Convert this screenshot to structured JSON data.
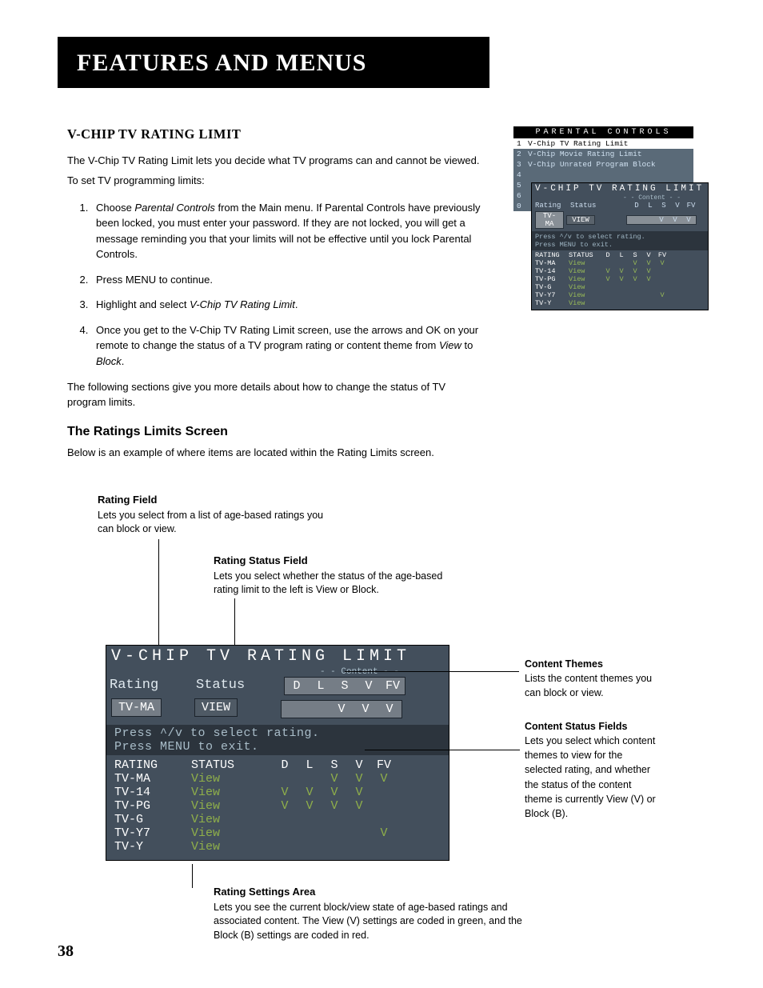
{
  "banner_title": "Features and Menus",
  "subhead": "V-Chip TV Rating Limit",
  "intro_p": "The V-Chip TV Rating Limit lets you decide what TV programs can and cannot be viewed.",
  "intro_p2": "To set TV programming limits:",
  "step1_a": "Choose ",
  "step1_b": "Parental Controls",
  "step1_c": " from the Main menu. If Parental Controls have previously been locked, you must enter your password. If they are not locked, you will get a message reminding you that your limits will not be effective until you lock Parental Controls.",
  "step2": "Press MENU to continue.",
  "step3_a": "Highlight and select ",
  "step3_b": "V-Chip TV Rating Limit",
  "step3_c": ".",
  "step4_a": "Once you get to the V-Chip TV Rating Limit screen, use the arrows and OK on your remote to change the status of a TV program rating or content theme from ",
  "step4_b": "View",
  "step4_c": " to ",
  "step4_d": "Block",
  "step4_e": ".",
  "after_p": "The following sections give you more details about how to change the status of TV program limits.",
  "h3": "The Ratings Limits Screen",
  "h3_sub": "Below is an example of where items are located within the Rating Limits screen.",
  "mini": {
    "header": "PARENTAL CONTROLS",
    "items": [
      {
        "n": "1",
        "t": "V-Chip TV Rating Limit",
        "sel": true
      },
      {
        "n": "2",
        "t": "V-Chip Movie Rating Limit"
      },
      {
        "n": "3",
        "t": "V-Chip Unrated Program Block"
      },
      {
        "n": "4",
        "t": ""
      },
      {
        "n": "5",
        "t": ""
      },
      {
        "n": "6",
        "t": ""
      },
      {
        "n": "0",
        "t": ""
      }
    ],
    "ov_title": "V-CHIP TV RATING LIMIT",
    "ov_subtitle": "- - Content - -",
    "rating_lbl": "Rating",
    "status_lbl": "Status",
    "content_cols": [
      "D",
      "L",
      "S",
      "V",
      "FV"
    ],
    "sel_rating": "TV-MA",
    "sel_status": "VIEW",
    "sel_content": [
      "",
      "",
      "V",
      "V",
      "V"
    ],
    "press1": "Press ^/v to select rating.",
    "press2": "Press MENU to exit.",
    "table_hdr": {
      "c1": "RATING",
      "c2": "STATUS"
    },
    "rows": [
      {
        "r": "TV-MA",
        "s": "View",
        "c": [
          "",
          "",
          "V",
          "V",
          "V"
        ]
      },
      {
        "r": "TV-14",
        "s": "View",
        "c": [
          "V",
          "V",
          "V",
          "V",
          ""
        ]
      },
      {
        "r": "TV-PG",
        "s": "View",
        "c": [
          "V",
          "V",
          "V",
          "V",
          ""
        ]
      },
      {
        "r": "TV-G",
        "s": "View",
        "c": [
          "",
          "",
          "",
          "",
          ""
        ]
      },
      {
        "r": "TV-Y7",
        "s": "View",
        "c": [
          "",
          "",
          "",
          "",
          "V"
        ]
      },
      {
        "r": "TV-Y",
        "s": "View",
        "c": [
          "",
          "",
          "",
          "",
          ""
        ]
      }
    ]
  },
  "annots": {
    "rating_field_t": "Rating Field",
    "rating_field_b": "Lets you select from a list of age-based ratings you can block or view.",
    "status_field_t": "Rating Status Field",
    "status_field_b": "Lets you select whether the status of the age-based rating limit to the left is View or Block.",
    "content_themes_t": "Content Themes",
    "content_themes_b": "Lists the content themes you can block or view.",
    "content_status_t": "Content Status Fields",
    "content_status_b": "Lets you select which content themes to view for the selected rating, and whether the status of the content theme is currently View (V) or Block (B).",
    "settings_area_t": "Rating Settings Area",
    "settings_area_b": "Lets you see the current block/view state of age-based ratings and associated content. The View (V) settings are coded in green, and the Block (B) settings are coded in red."
  },
  "osd": {
    "title": "V-CHIP TV RATING LIMIT",
    "subtitle": "- - Content - -",
    "rating_lbl": "Rating",
    "status_lbl": "Status",
    "content_cols": [
      "D",
      "L",
      "S",
      "V",
      "FV"
    ],
    "sel_rating": "TV-MA",
    "sel_status": "VIEW",
    "sel_content": [
      "",
      "",
      "V",
      "V",
      "V"
    ],
    "press1": "Press ^/v to select rating.",
    "press2": "Press MENU to exit.",
    "table_hdr": {
      "c1": "RATING",
      "c2": "STATUS"
    },
    "rows": [
      {
        "r": "TV-MA",
        "s": "View",
        "c": [
          "",
          "",
          "V",
          "V",
          "V"
        ]
      },
      {
        "r": "TV-14",
        "s": "View",
        "c": [
          "V",
          "V",
          "V",
          "V",
          ""
        ]
      },
      {
        "r": "TV-PG",
        "s": "View",
        "c": [
          "V",
          "V",
          "V",
          "V",
          ""
        ]
      },
      {
        "r": "TV-G",
        "s": "View",
        "c": [
          "",
          "",
          "",
          "",
          ""
        ]
      },
      {
        "r": "TV-Y7",
        "s": "View",
        "c": [
          "",
          "",
          "",
          "",
          "V"
        ]
      },
      {
        "r": "TV-Y",
        "s": "View",
        "c": [
          "",
          "",
          "",
          "",
          ""
        ]
      }
    ]
  },
  "page_num": "38",
  "colors": {
    "osd_bg": "#434f5c",
    "osd_dark": "#2c343d",
    "osd_pill": "#757d86",
    "green": "#8faf4a",
    "white": "#ffffff"
  }
}
